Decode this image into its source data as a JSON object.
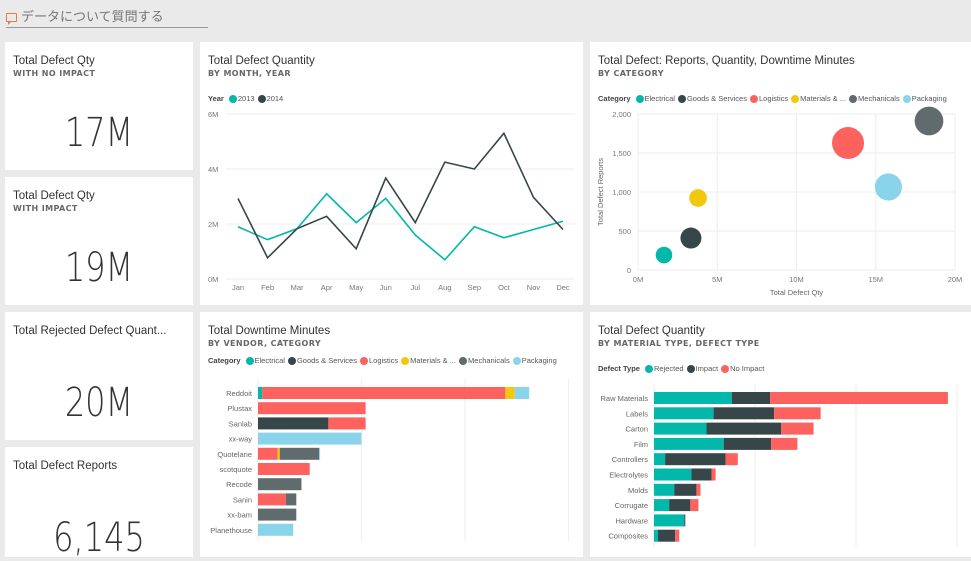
{
  "qa": {
    "placeholder": "データについて質問する",
    "icon": "speech-bubble-icon"
  },
  "colors": {
    "teal": "#01b8aa",
    "dark": "#374649",
    "red": "#fd625e",
    "yellow": "#f2c80f",
    "gray": "#5f6b6d",
    "lightblue": "#8ad4eb"
  },
  "kpis": [
    {
      "title": "Total Defect Qty",
      "subtitle": "WITH NO IMPACT",
      "value": "17M"
    },
    {
      "title": "Total Defect Qty",
      "subtitle": "WITH IMPACT",
      "value": "19M"
    },
    {
      "title": "Total Rejected Defect Quant...",
      "subtitle": "",
      "value": "20M"
    },
    {
      "title": "Total Defect Reports",
      "subtitle": "",
      "value": "6,145"
    }
  ],
  "chart_data": [
    {
      "type": "line",
      "title": "Total Defect Quantity",
      "subtitle": "BY MONTH, YEAR",
      "legend_title": "Year",
      "x": [
        "Jan",
        "Feb",
        "Mar",
        "Apr",
        "May",
        "Jun",
        "Jul",
        "Aug",
        "Sep",
        "Oct",
        "Nov",
        "Dec"
      ],
      "ylim": [
        0,
        6
      ],
      "yticks": [
        "0M",
        "2M",
        "4M",
        "6M"
      ],
      "yunit": "M",
      "series": [
        {
          "name": "2013",
          "color": "#01b8aa",
          "values": [
            1.9,
            1.43,
            1.83,
            3.1,
            2.05,
            2.93,
            1.6,
            0.7,
            1.9,
            1.5,
            1.8,
            2.1
          ]
        },
        {
          "name": "2014",
          "color": "#374649",
          "values": [
            2.93,
            0.77,
            1.83,
            2.28,
            1.1,
            3.67,
            2.05,
            4.25,
            4.0,
            5.3,
            2.97,
            1.8
          ]
        }
      ]
    },
    {
      "type": "scatter",
      "title": "Total Defect: Reports, Quantity, Downtime Minutes",
      "subtitle": "BY CATEGORY",
      "legend_title": "Category",
      "xlabel": "Total Defect Qty",
      "ylabel": "Total Defect Reports",
      "xlim": [
        0,
        20
      ],
      "ylim": [
        0,
        2000
      ],
      "xticks": [
        "0M",
        "5M",
        "10M",
        "15M",
        "20M"
      ],
      "yticks": [
        "0",
        "500",
        "1,000",
        "1,500",
        "2,000"
      ],
      "points": [
        {
          "category": "Electrical",
          "label": "Electrical",
          "color": "#01b8aa",
          "x": 1.64,
          "y": 192,
          "size": 0.3
        },
        {
          "category": "Goods & Services",
          "label": "Goods & Services",
          "color": "#374649",
          "x": 3.34,
          "y": 410,
          "size": 0.5
        },
        {
          "category": "Logistics",
          "label": "Logistics",
          "color": "#fd625e",
          "x": 13.25,
          "y": 1628,
          "size": 1.0
        },
        {
          "category": "Materials & ...",
          "label": "Materials & ...",
          "color": "#f2c80f",
          "x": 3.79,
          "y": 923,
          "size": 0.35
        },
        {
          "category": "Mechanicals",
          "label": "Mechanicals",
          "color": "#5f6b6d",
          "x": 18.36,
          "y": 1910,
          "size": 0.85
        },
        {
          "category": "Packaging",
          "label": "Packaging",
          "color": "#8ad4eb",
          "x": 15.8,
          "y": 1064,
          "size": 0.78
        }
      ]
    },
    {
      "type": "bar",
      "orientation": "horizontal-stacked",
      "title": "Total Downtime Minutes",
      "subtitle": "BY VENDOR, CATEGORY",
      "legend_title": "Category",
      "categories": [
        "Reddoit",
        "Plustax",
        "Sanlab",
        "xx-way",
        "Quotelane",
        "scotquote",
        "Recode",
        "Sanin",
        "xx-bam",
        "Planethouse"
      ],
      "xlim_gridunits": [
        0,
        3
      ],
      "series": [
        {
          "name": "Electrical",
          "color": "#01b8aa",
          "values": [
            0.04,
            0,
            0,
            0,
            0,
            0,
            0,
            0,
            0,
            0
          ]
        },
        {
          "name": "Goods & Services",
          "color": "#374649",
          "values": [
            0,
            0,
            0.68,
            0,
            0,
            0,
            0,
            0,
            0,
            0
          ]
        },
        {
          "name": "Logistics",
          "color": "#fd625e",
          "values": [
            2.35,
            1.04,
            0.36,
            0,
            0.19,
            0.5,
            0,
            0.27,
            0,
            0
          ]
        },
        {
          "name": "Materials & ...",
          "color": "#f2c80f",
          "values": [
            0.09,
            0,
            0,
            0,
            0.02,
            0,
            0,
            0,
            0,
            0
          ]
        },
        {
          "name": "Mechanicals",
          "color": "#5f6b6d",
          "values": [
            0,
            0,
            0,
            0,
            0.38,
            0,
            0.42,
            0.1,
            0.37,
            0
          ]
        },
        {
          "name": "Packaging",
          "color": "#8ad4eb",
          "values": [
            0.14,
            0,
            0,
            1.0,
            0.01,
            0,
            0,
            0,
            0,
            0.34
          ]
        }
      ]
    },
    {
      "type": "bar",
      "orientation": "horizontal-stacked",
      "title": "Total Defect Quantity",
      "subtitle": "BY MATERIAL TYPE, DEFECT TYPE",
      "legend_title": "Defect Type",
      "categories": [
        "Raw Materials",
        "Labels",
        "Carton",
        "Film",
        "Controllers",
        "Electrolytes",
        "Molds",
        "Corrugate",
        "Hardware",
        "Composites"
      ],
      "xlim_gridunits": [
        0,
        3
      ],
      "series": [
        {
          "name": "Rejected",
          "color": "#01b8aa",
          "values": [
            0.77,
            0.59,
            0.52,
            0.69,
            0.11,
            0.37,
            0.2,
            0.15,
            0.3,
            0.04
          ]
        },
        {
          "name": "Impact",
          "color": "#374649",
          "values": [
            0.38,
            0.6,
            0.74,
            0.47,
            0.6,
            0.2,
            0.22,
            0.21,
            0.01,
            0.17
          ]
        },
        {
          "name": "No Impact",
          "color": "#fd625e",
          "values": [
            1.76,
            0.46,
            0.32,
            0.26,
            0.12,
            0.04,
            0.04,
            0.08,
            0,
            0.04
          ]
        }
      ]
    }
  ]
}
